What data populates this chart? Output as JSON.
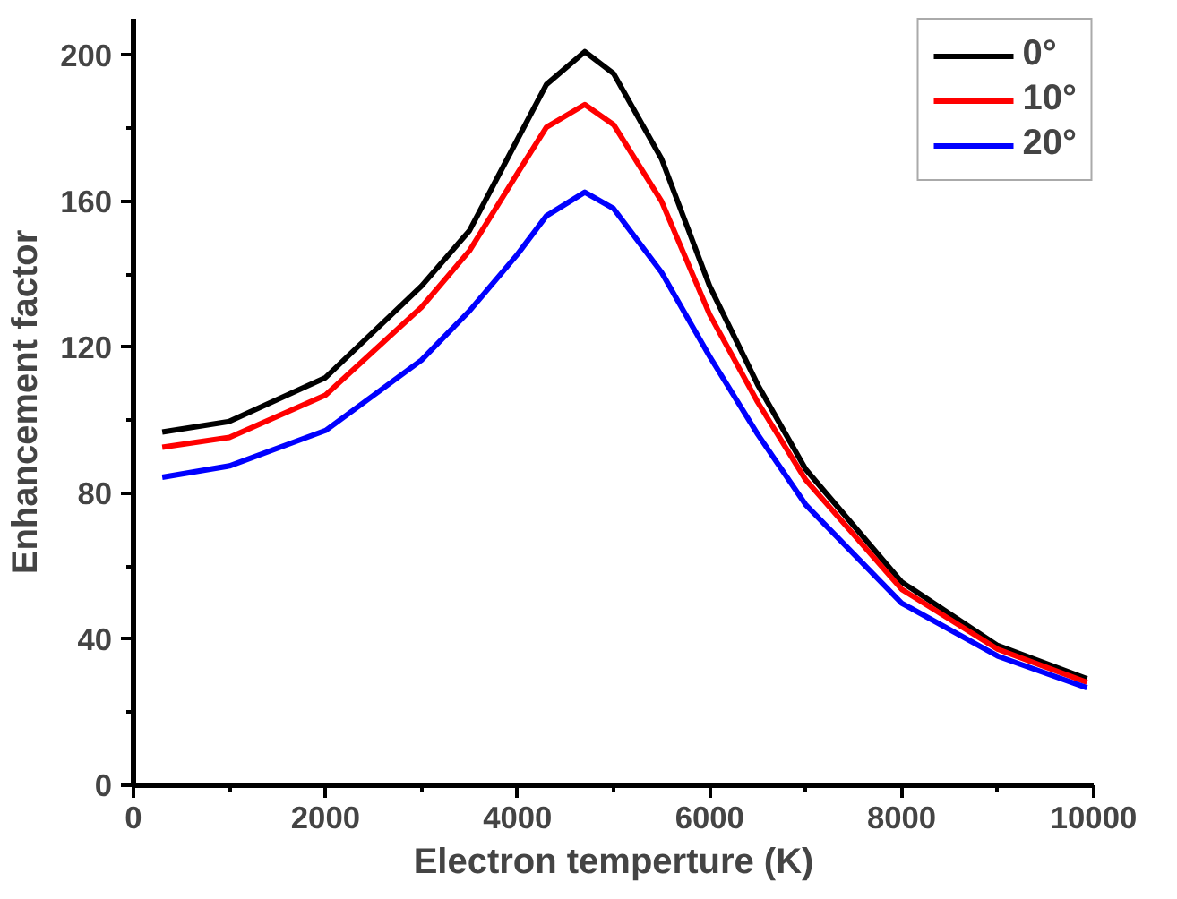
{
  "chart_data": {
    "type": "line",
    "xlabel": "Electron temperture (K)",
    "ylabel": "Enhancement factor",
    "x": [
      300,
      1000,
      2000,
      3000,
      3500,
      4000,
      4300,
      4700,
      5000,
      5500,
      6000,
      6500,
      7000,
      8000,
      9000,
      9930
    ],
    "series": [
      {
        "name": "0°",
        "color": "#000000",
        "values": [
          96.8,
          99.7,
          111.7,
          136.8,
          152,
          177,
          192,
          201,
          195,
          171.6,
          136.8,
          109.8,
          86.6,
          55.7,
          38.3,
          29.2
        ]
      },
      {
        "name": "10°",
        "color": "#ff0000",
        "values": [
          92.6,
          95.3,
          106.9,
          131,
          146.5,
          167.7,
          180.3,
          186.5,
          181,
          160,
          129,
          105,
          83.7,
          53.7,
          37.3,
          28.2
        ]
      },
      {
        "name": "20°",
        "color": "#0000ff",
        "values": [
          84.4,
          87.5,
          97.2,
          116.5,
          130,
          145.5,
          156,
          162.5,
          158,
          140.5,
          117.5,
          96.2,
          76.9,
          49.9,
          35.4,
          26.7
        ]
      }
    ],
    "xlim": [
      0,
      10000
    ],
    "xticks": [
      0,
      2000,
      4000,
      6000,
      8000,
      10000
    ],
    "ylim": [
      0,
      210
    ],
    "yticks": [
      0,
      40,
      80,
      120,
      160,
      200
    ],
    "grid": false,
    "legend": "top right",
    "line_style": "solid",
    "marker": "none"
  }
}
